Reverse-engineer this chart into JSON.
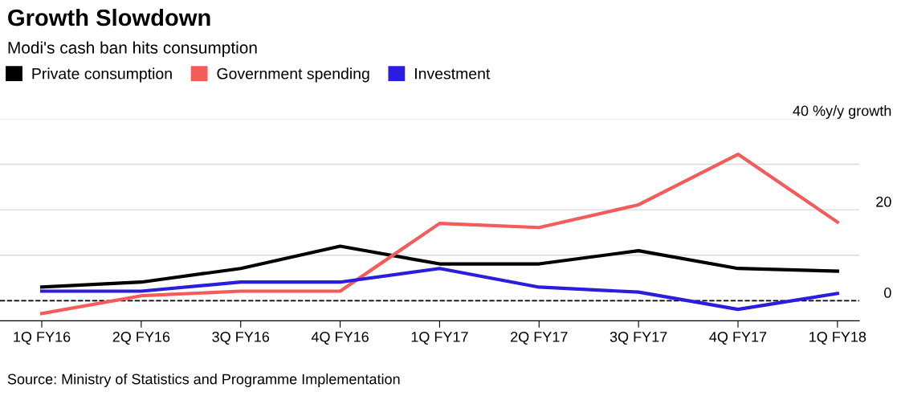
{
  "chart_data": {
    "type": "line",
    "title": "Growth Slowdown",
    "subtitle": "Modi's cash ban hits consumption",
    "categories": [
      "1Q FY16",
      "2Q FY16",
      "3Q FY16",
      "4Q FY16",
      "1Q FY17",
      "2Q FY17",
      "3Q FY17",
      "4Q FY17",
      "1Q FY18"
    ],
    "series": [
      {
        "name": "Private consumption",
        "color": "#000000",
        "values": [
          3.0,
          4.1,
          7.1,
          12.0,
          8.1,
          8.1,
          11.0,
          7.1,
          6.5
        ]
      },
      {
        "name": "Government spending",
        "color": "#f45b5b",
        "values": [
          -2.8,
          1.1,
          2.1,
          2.1,
          17.0,
          16.1,
          21.1,
          32.2,
          17.3
        ]
      },
      {
        "name": "Investment",
        "color": "#2a1de0",
        "values": [
          2.1,
          2.1,
          4.1,
          4.1,
          7.1,
          3.0,
          1.9,
          -1.9,
          1.6
        ]
      }
    ],
    "ylim": [
      -4.4,
      40
    ],
    "yticks": [
      0,
      {
        "value": 10,
        "label": null
      },
      20,
      {
        "value": 30,
        "label": null
      },
      {
        "value": 40,
        "label": "40 %y/y growth"
      }
    ],
    "ref_lines": [
      {
        "axis": "y",
        "value": 0,
        "color": "#000000",
        "line_style": "dashed"
      }
    ],
    "grid": "y",
    "legend": "top left",
    "line_style": "solid",
    "marker": "none",
    "annotations": [
      "Source: Ministry of Statistics and Programme Implementation"
    ]
  }
}
